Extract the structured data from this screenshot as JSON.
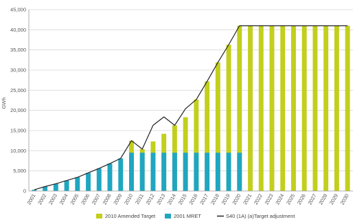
{
  "chart_data": {
    "type": "bar",
    "title": "",
    "xlabel": "",
    "ylabel": "GWh",
    "ylim": [
      0,
      45000
    ],
    "yticks": [
      0,
      5000,
      10000,
      15000,
      20000,
      25000,
      30000,
      35000,
      40000,
      45000
    ],
    "ytick_labels": [
      "0",
      "5,000",
      "10,000",
      "15,000",
      "20,000",
      "25,000",
      "30,000",
      "35,000",
      "40,000",
      "45,000"
    ],
    "grid": true,
    "legend_position": "bottom",
    "categories": [
      "2001",
      "2002",
      "2003",
      "2004",
      "2005",
      "2006",
      "2007",
      "2008",
      "2009",
      "2010",
      "2011",
      "2012",
      "2013",
      "2014",
      "2015",
      "2016",
      "2017",
      "2018",
      "2019",
      "2020",
      "2021",
      "2022",
      "2023",
      "2024",
      "2025",
      "2026",
      "2027",
      "2028",
      "2029",
      "2030"
    ],
    "series": [
      {
        "name": "2010 Amended Target",
        "kind": "bar",
        "color": "#c2cf1c",
        "values": [
          null,
          null,
          null,
          null,
          null,
          null,
          null,
          null,
          null,
          12500,
          10400,
          12300,
          14200,
          16300,
          18300,
          22700,
          27200,
          31900,
          36300,
          41000,
          41000,
          41000,
          41000,
          41000,
          41000,
          41000,
          41000,
          41000,
          41000,
          41000
        ]
      },
      {
        "name": "2001 MRET",
        "kind": "bar",
        "color": "#1fa6c1",
        "values": [
          300,
          1100,
          1800,
          2600,
          3400,
          4500,
          5600,
          6800,
          8100,
          9500,
          9500,
          9500,
          9500,
          9500,
          9500,
          9500,
          9500,
          9500,
          9500,
          9500,
          null,
          null,
          null,
          null,
          null,
          null,
          null,
          null,
          null,
          null
        ]
      },
      {
        "name": "S40 (1A) (a)Target adjustment",
        "kind": "line",
        "color": "#222222",
        "values": [
          300,
          1100,
          1800,
          2600,
          3400,
          4500,
          5600,
          6800,
          8100,
          12500,
          10400,
          16300,
          18400,
          16300,
          20400,
          22700,
          27200,
          31900,
          36300,
          41000,
          41000,
          41000,
          41000,
          41000,
          41000,
          41000,
          41000,
          41000,
          41000,
          41000
        ]
      }
    ]
  }
}
